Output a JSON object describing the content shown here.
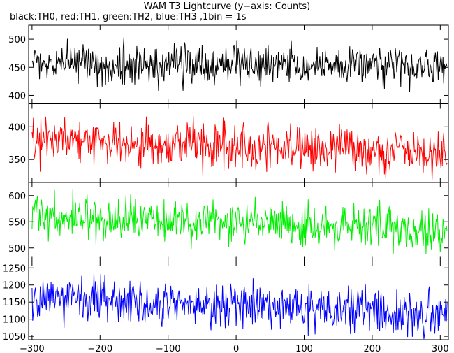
{
  "title": "WAM T3 Lightcurve (y−axis: Counts)",
  "subtitle": "black:TH0, red:TH1, green:TH2, blue:TH3 ,1bin = 1s",
  "chart_data": [
    {
      "type": "line",
      "name": "TH0",
      "color": "#000000",
      "x": {
        "start": -300,
        "end": 310,
        "step": 1,
        "ticks": [
          -300,
          -200,
          -100,
          0,
          100,
          200,
          300
        ],
        "xlim": [
          -305,
          312
        ]
      },
      "ylim": [
        385,
        525
      ],
      "yticks": [
        400,
        450,
        500
      ],
      "level": {
        "start": 455,
        "end": 450
      },
      "noise": 18,
      "envelope": [
        387,
        522
      ]
    },
    {
      "type": "line",
      "name": "TH1",
      "color": "#ff0000",
      "x": {
        "start": -300,
        "end": 310,
        "step": 1,
        "ticks": [
          -300,
          -200,
          -100,
          0,
          100,
          200,
          300
        ],
        "xlim": [
          -305,
          312
        ]
      },
      "ylim": [
        315,
        435
      ],
      "yticks": [
        350,
        400
      ],
      "level": {
        "start": 380,
        "end": 360
      },
      "noise": 18,
      "envelope": [
        318,
        432
      ]
    },
    {
      "type": "line",
      "name": "TH2",
      "color": "#00ee00",
      "x": {
        "start": -300,
        "end": 310,
        "step": 1,
        "ticks": [
          -300,
          -200,
          -100,
          0,
          100,
          200,
          300
        ],
        "xlim": [
          -305,
          312
        ]
      },
      "ylim": [
        475,
        625
      ],
      "yticks": [
        500,
        550,
        600
      ],
      "level": {
        "start": 560,
        "end": 535
      },
      "noise": 21,
      "envelope": [
        478,
        622
      ]
    },
    {
      "type": "line",
      "name": "TH3",
      "color": "#0000ff",
      "x": {
        "start": -300,
        "end": 310,
        "step": 1,
        "ticks": [
          -300,
          -200,
          -100,
          0,
          100,
          200,
          300
        ],
        "xlim": [
          -305,
          312
        ]
      },
      "ylim": [
        1040,
        1270
      ],
      "yticks": [
        1050,
        1100,
        1150,
        1200,
        1250
      ],
      "level": {
        "start": 1165,
        "end": 1115
      },
      "noise": 33,
      "envelope": [
        1042,
        1268
      ]
    }
  ]
}
